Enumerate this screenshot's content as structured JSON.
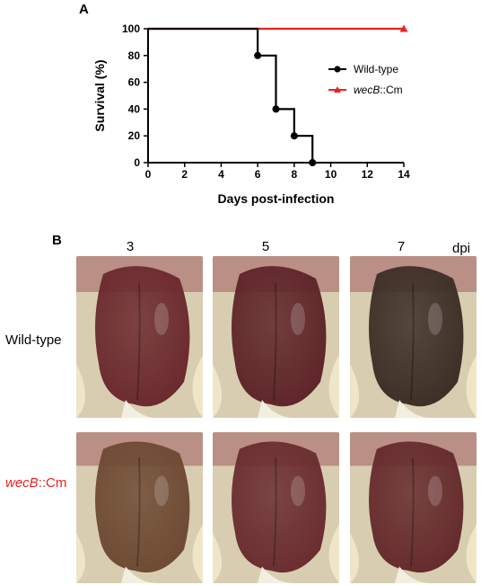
{
  "panel_a_letter": "A",
  "panel_b_letter": "B",
  "chart_data": {
    "type": "line",
    "step": true,
    "xlabel": "Days post-infection",
    "ylabel": "Survival (%)",
    "xlim": [
      0,
      14
    ],
    "ylim": [
      0,
      100
    ],
    "xticks": [
      0,
      2,
      4,
      6,
      8,
      10,
      12,
      14
    ],
    "yticks": [
      0,
      20,
      40,
      60,
      80,
      100
    ],
    "grid": false,
    "legend_position": "right",
    "series": [
      {
        "name": "Wild-type",
        "color": "#000000",
        "marker": "circle",
        "x": [
          0,
          6,
          7,
          8,
          9
        ],
        "y": [
          100,
          80,
          40,
          20,
          0
        ],
        "marked_points": [
          [
            6,
            80
          ],
          [
            7,
            40
          ],
          [
            8,
            20
          ],
          [
            9,
            0
          ]
        ]
      },
      {
        "name": "wecB::Cm",
        "name_parts": [
          "wecB",
          "::Cm"
        ],
        "color": "#e8231f",
        "marker": "triangle",
        "x": [
          0,
          14
        ],
        "y": [
          100,
          100
        ],
        "marked_points": [
          [
            14,
            100
          ]
        ]
      }
    ]
  },
  "photos": {
    "columns": [
      "3",
      "5",
      "7"
    ],
    "unit": "dpi",
    "rows": [
      {
        "label": "Wild-type",
        "color": "#000000"
      },
      {
        "label_italic": "wecB",
        "label_rest": "::Cm",
        "color": "#e8231f"
      }
    ],
    "tones": {
      "wt": [
        "#6b2a2e",
        "#5e2528",
        "#3d2f26"
      ],
      "mut": [
        "#6e4a33",
        "#6a2d30",
        "#652b2c"
      ]
    }
  }
}
